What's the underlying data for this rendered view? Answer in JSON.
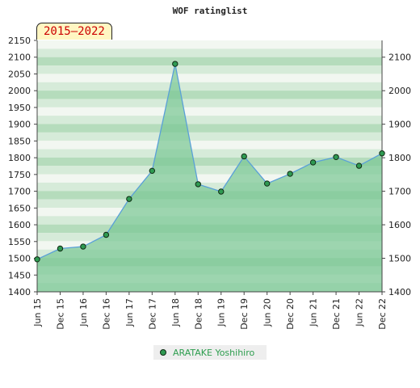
{
  "chart_data": {
    "type": "area",
    "title": "WOF ratinglist",
    "period_label": "2015–2022",
    "categories": [
      "Jun 15",
      "Dec 15",
      "Jun 16",
      "Dec 16",
      "Jun 17",
      "Dec 17",
      "Jun 18",
      "Dec 18",
      "Jun 19",
      "Dec 19",
      "Jun 20",
      "Dec 20",
      "Jun 21",
      "Dec 21",
      "Jun 22",
      "Dec 22"
    ],
    "series": [
      {
        "name": "ARATAKE Yoshihiro",
        "values": [
          1497,
          1529,
          1535,
          1570,
          1677,
          1761,
          2080,
          1721,
          1699,
          1804,
          1723,
          1752,
          1786,
          1802,
          1776,
          1813
        ]
      }
    ],
    "y_left": {
      "min": 1400,
      "max": 2150,
      "ticks": [
        1400,
        1450,
        1500,
        1550,
        1600,
        1650,
        1700,
        1750,
        1800,
        1850,
        1900,
        1950,
        2000,
        2050,
        2100,
        2150
      ]
    },
    "y_right": {
      "min": 1400,
      "max": 2150,
      "ticks": [
        1400,
        1500,
        1600,
        1700,
        1800,
        1900,
        2000,
        2100
      ]
    },
    "grid": "horizontal-bands",
    "legend_position": "bottom-center",
    "colors": {
      "fill": "#7cc895",
      "line": "#5aa0d8",
      "marker": "#2f9a52",
      "marker_edge": "#102a14"
    }
  }
}
